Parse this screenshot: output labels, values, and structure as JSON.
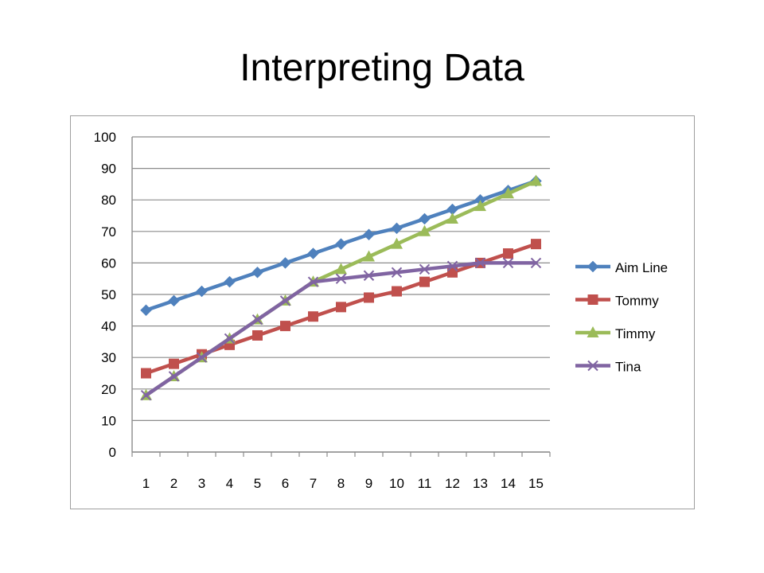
{
  "slide": {
    "title": "Interpreting Data"
  },
  "chart_data": {
    "type": "line",
    "title": "",
    "xlabel": "",
    "ylabel": "",
    "x": [
      1,
      2,
      3,
      4,
      5,
      6,
      7,
      8,
      9,
      10,
      11,
      12,
      13,
      14,
      15
    ],
    "ylim": [
      0,
      100
    ],
    "yticks": [
      0,
      10,
      20,
      30,
      40,
      50,
      60,
      70,
      80,
      90,
      100
    ],
    "grid": "horizontal",
    "legend": "right",
    "series": [
      {
        "name": "Aim Line",
        "color": "#4F81BD",
        "marker": "diamond",
        "values": [
          45,
          48,
          51,
          54,
          57,
          60,
          63,
          66,
          69,
          71,
          74,
          77,
          80,
          83,
          86
        ]
      },
      {
        "name": "Tommy",
        "color": "#C0504D",
        "marker": "square",
        "values": [
          25,
          28,
          31,
          34,
          37,
          40,
          43,
          46,
          49,
          51,
          54,
          57,
          60,
          63,
          66
        ]
      },
      {
        "name": "Timmy",
        "color": "#9BBB59",
        "marker": "triangle",
        "values": [
          18,
          24,
          30,
          36,
          42,
          48,
          54,
          58,
          62,
          66,
          70,
          74,
          78,
          82,
          86
        ]
      },
      {
        "name": "Tina",
        "color": "#8064A2",
        "marker": "x",
        "values": [
          18,
          24,
          30,
          36,
          42,
          48,
          54,
          55,
          56,
          57,
          58,
          59,
          60,
          60,
          60
        ]
      }
    ]
  }
}
